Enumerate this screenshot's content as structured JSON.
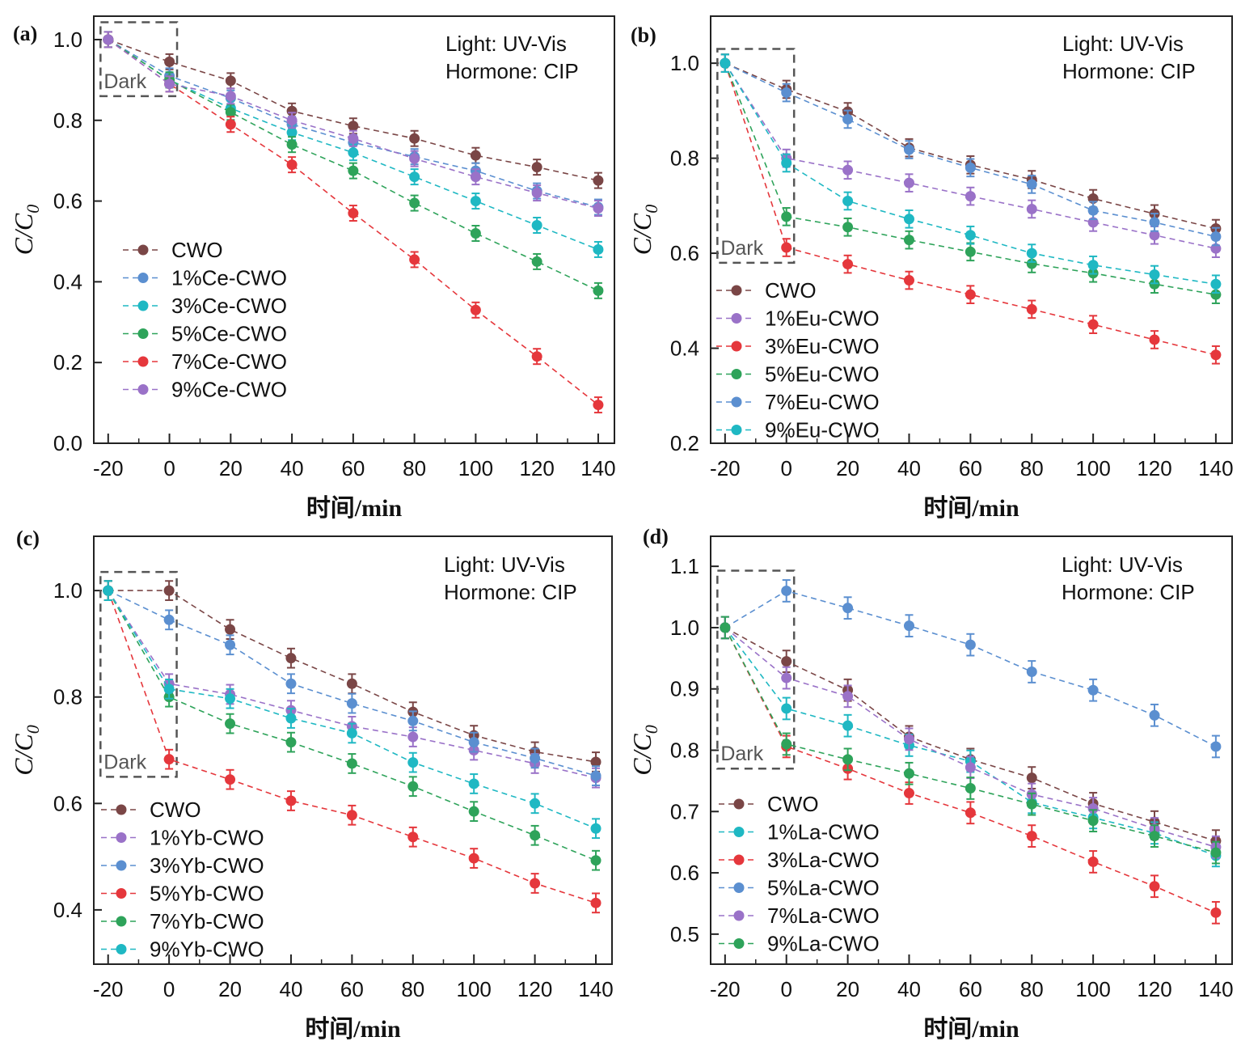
{
  "colors": {
    "CWO": "#7a4646",
    "blue": "#5b8fd0",
    "cyan": "#1fb8c3",
    "green": "#2ea35a",
    "red": "#e5373c",
    "purple": "#9a72c8"
  },
  "chart_data": [
    {
      "type": "line",
      "panel_label": "(a)",
      "annotation": [
        "Light: UV-Vis",
        "Hormone: CIP"
      ],
      "dark_label": "Dark",
      "xlabel": "时间/min",
      "ylabel": "C/C",
      "ylabel_sub": "0",
      "x": [
        -20,
        0,
        20,
        40,
        60,
        80,
        100,
        120,
        140
      ],
      "xticks": [
        "-20",
        "0",
        "20",
        "40",
        "60",
        "80",
        "100",
        "120",
        "140"
      ],
      "yticks": [
        "0.0",
        "0.2",
        "0.4",
        "0.6",
        "0.8",
        "1.0"
      ],
      "ytick_values": [
        0,
        0.2,
        0.4,
        0.6,
        0.8,
        1.0
      ],
      "xlim": [
        -24.7,
        145.3
      ],
      "ylim": [
        0,
        1.058
      ],
      "dark_region": {
        "x": [
          -22.5,
          2.5
        ],
        "y": [
          0.86,
          1.043
        ]
      },
      "legend_position": "middle-left",
      "series": [
        {
          "name": "CWO",
          "color_key": "CWO",
          "values": [
            1.0,
            0.945,
            0.898,
            0.823,
            0.786,
            0.755,
            0.713,
            0.684,
            0.651
          ]
        },
        {
          "name": "1%Ce-CWO",
          "color_key": "blue",
          "values": [
            1.0,
            0.91,
            0.855,
            0.79,
            0.745,
            0.71,
            0.675,
            0.625,
            0.585
          ]
        },
        {
          "name": "3%Ce-CWO",
          "color_key": "cyan",
          "values": [
            1.0,
            0.9,
            0.83,
            0.77,
            0.72,
            0.66,
            0.6,
            0.54,
            0.48
          ]
        },
        {
          "name": "5%Ce-CWO",
          "color_key": "green",
          "values": [
            1.0,
            0.9,
            0.82,
            0.74,
            0.675,
            0.595,
            0.52,
            0.45,
            0.378
          ]
        },
        {
          "name": "7%Ce-CWO",
          "color_key": "red",
          "values": [
            1.0,
            0.89,
            0.79,
            0.69,
            0.57,
            0.455,
            0.33,
            0.215,
            0.095
          ]
        },
        {
          "name": "9%Ce-CWO",
          "color_key": "purple",
          "values": [
            1.0,
            0.89,
            0.86,
            0.8,
            0.755,
            0.705,
            0.66,
            0.62,
            0.582
          ]
        }
      ]
    },
    {
      "type": "line",
      "panel_label": "(b)",
      "annotation": [
        "Light: UV-Vis",
        "Hormone: CIP"
      ],
      "dark_label": "Dark",
      "xlabel": "时间/min",
      "ylabel": "C/C",
      "ylabel_sub": "0",
      "x": [
        -20,
        0,
        20,
        40,
        60,
        80,
        100,
        120,
        140
      ],
      "xticks": [
        "-20",
        "0",
        "20",
        "40",
        "60",
        "80",
        "100",
        "120",
        "140"
      ],
      "yticks": [
        "0.2",
        "0.4",
        "0.6",
        "0.8",
        "1.0"
      ],
      "ytick_values": [
        0.2,
        0.4,
        0.6,
        0.8,
        1.0
      ],
      "xlim": [
        -24.7,
        145.3
      ],
      "ylim": [
        0.2,
        1.099
      ],
      "dark_region": {
        "x": [
          -22.5,
          2.5
        ],
        "y": [
          0.58,
          1.03
        ]
      },
      "legend_position": "bottom-left",
      "series": [
        {
          "name": "CWO",
          "color_key": "CWO",
          "values": [
            1.0,
            0.945,
            0.898,
            0.822,
            0.786,
            0.755,
            0.715,
            0.683,
            0.652
          ]
        },
        {
          "name": "1%Eu-CWO",
          "color_key": "purple",
          "values": [
            1.0,
            0.8,
            0.775,
            0.748,
            0.72,
            0.693,
            0.665,
            0.638,
            0.61
          ]
        },
        {
          "name": "3%Eu-CWO",
          "color_key": "red",
          "values": [
            1.0,
            0.612,
            0.577,
            0.543,
            0.513,
            0.482,
            0.45,
            0.418,
            0.386
          ]
        },
        {
          "name": "5%Eu-CWO",
          "color_key": "green",
          "values": [
            1.0,
            0.677,
            0.655,
            0.628,
            0.603,
            0.578,
            0.558,
            0.535,
            0.513
          ]
        },
        {
          "name": "7%Eu-CWO",
          "color_key": "blue",
          "values": [
            1.0,
            0.938,
            0.882,
            0.818,
            0.78,
            0.745,
            0.69,
            0.665,
            0.635
          ]
        },
        {
          "name": "9%Eu-CWO",
          "color_key": "cyan",
          "values": [
            1.0,
            0.79,
            0.71,
            0.672,
            0.638,
            0.6,
            0.575,
            0.555,
            0.535
          ]
        }
      ]
    },
    {
      "type": "line",
      "panel_label": "(c)",
      "annotation": [
        "Light: UV-Vis",
        "Hormone: CIP"
      ],
      "dark_label": "Dark",
      "xlabel": "时间/min",
      "ylabel": "C/C",
      "ylabel_sub": "0",
      "x": [
        -20,
        0,
        20,
        40,
        60,
        80,
        100,
        120,
        140
      ],
      "xticks": [
        "-20",
        "0",
        "20",
        "40",
        "60",
        "80",
        "100",
        "120",
        "140"
      ],
      "yticks": [
        "0.4",
        "0.6",
        "0.8",
        "1.0"
      ],
      "ytick_values": [
        0.4,
        0.6,
        0.8,
        1.0
      ],
      "xlim": [
        -24.7,
        145.3
      ],
      "ylim": [
        0.298,
        1.102
      ],
      "dark_region": {
        "x": [
          -22.5,
          2.5
        ],
        "y": [
          0.65,
          1.035
        ]
      },
      "legend_position": "bottom-left",
      "series": [
        {
          "name": "CWO",
          "color_key": "CWO",
          "values": [
            1.0,
            1.0,
            0.927,
            0.873,
            0.825,
            0.772,
            0.728,
            0.697,
            0.678
          ]
        },
        {
          "name": "1%Yb-CWO",
          "color_key": "purple",
          "values": [
            1.0,
            0.825,
            0.805,
            0.775,
            0.745,
            0.725,
            0.7,
            0.675,
            0.648
          ]
        },
        {
          "name": "3%Yb-CWO",
          "color_key": "blue",
          "values": [
            1.0,
            0.945,
            0.898,
            0.825,
            0.788,
            0.755,
            0.715,
            0.685,
            0.652
          ]
        },
        {
          "name": "5%Yb-CWO",
          "color_key": "red",
          "values": [
            1.0,
            0.683,
            0.645,
            0.605,
            0.578,
            0.537,
            0.497,
            0.45,
            0.413
          ]
        },
        {
          "name": "7%Yb-CWO",
          "color_key": "green",
          "values": [
            1.0,
            0.8,
            0.75,
            0.715,
            0.675,
            0.632,
            0.585,
            0.54,
            0.493
          ]
        },
        {
          "name": "9%Yb-CWO",
          "color_key": "cyan",
          "values": [
            1.0,
            0.815,
            0.797,
            0.76,
            0.732,
            0.677,
            0.637,
            0.6,
            0.553
          ]
        }
      ]
    },
    {
      "type": "line",
      "panel_label": "(d)",
      "annotation": [
        "Light: UV-Vis",
        "Hormone: CIP"
      ],
      "dark_label": "Dark",
      "xlabel": "时间/min",
      "ylabel": "C/C",
      "ylabel_sub": "0",
      "x": [
        -20,
        0,
        20,
        40,
        60,
        80,
        100,
        120,
        140
      ],
      "xticks": [
        "-20",
        "0",
        "20",
        "40",
        "60",
        "80",
        "100",
        "120",
        "140"
      ],
      "yticks": [
        "0.5",
        "0.6",
        "0.7",
        "0.8",
        "0.9",
        "1.0",
        "1.1"
      ],
      "ytick_values": [
        0.5,
        0.6,
        0.7,
        0.8,
        0.9,
        1.0,
        1.1
      ],
      "xlim": [
        -24.7,
        145.3
      ],
      "ylim": [
        0.451,
        1.149
      ],
      "dark_region": {
        "x": [
          -22.5,
          2.5
        ],
        "y": [
          0.77,
          1.093
        ]
      },
      "legend_position": "bottom-left",
      "series": [
        {
          "name": "CWO",
          "color_key": "CWO",
          "values": [
            1.0,
            0.945,
            0.898,
            0.822,
            0.785,
            0.755,
            0.713,
            0.683,
            0.652
          ]
        },
        {
          "name": "1%La-CWO",
          "color_key": "cyan",
          "values": [
            1.0,
            0.868,
            0.84,
            0.808,
            0.782,
            0.715,
            0.69,
            0.665,
            0.628
          ]
        },
        {
          "name": "3%La-CWO",
          "color_key": "red",
          "values": [
            1.0,
            0.806,
            0.77,
            0.73,
            0.698,
            0.66,
            0.618,
            0.578,
            0.535
          ]
        },
        {
          "name": "5%La-CWO",
          "color_key": "blue",
          "values": [
            1.0,
            1.06,
            1.032,
            1.003,
            0.972,
            0.928,
            0.898,
            0.857,
            0.806
          ]
        },
        {
          "name": "7%La-CWO",
          "color_key": "purple",
          "values": [
            1.0,
            0.918,
            0.888,
            0.818,
            0.772,
            0.728,
            0.705,
            0.672,
            0.642
          ]
        },
        {
          "name": "9%La-CWO",
          "color_key": "green",
          "values": [
            1.0,
            0.81,
            0.785,
            0.762,
            0.738,
            0.712,
            0.685,
            0.66,
            0.633
          ]
        }
      ]
    }
  ]
}
